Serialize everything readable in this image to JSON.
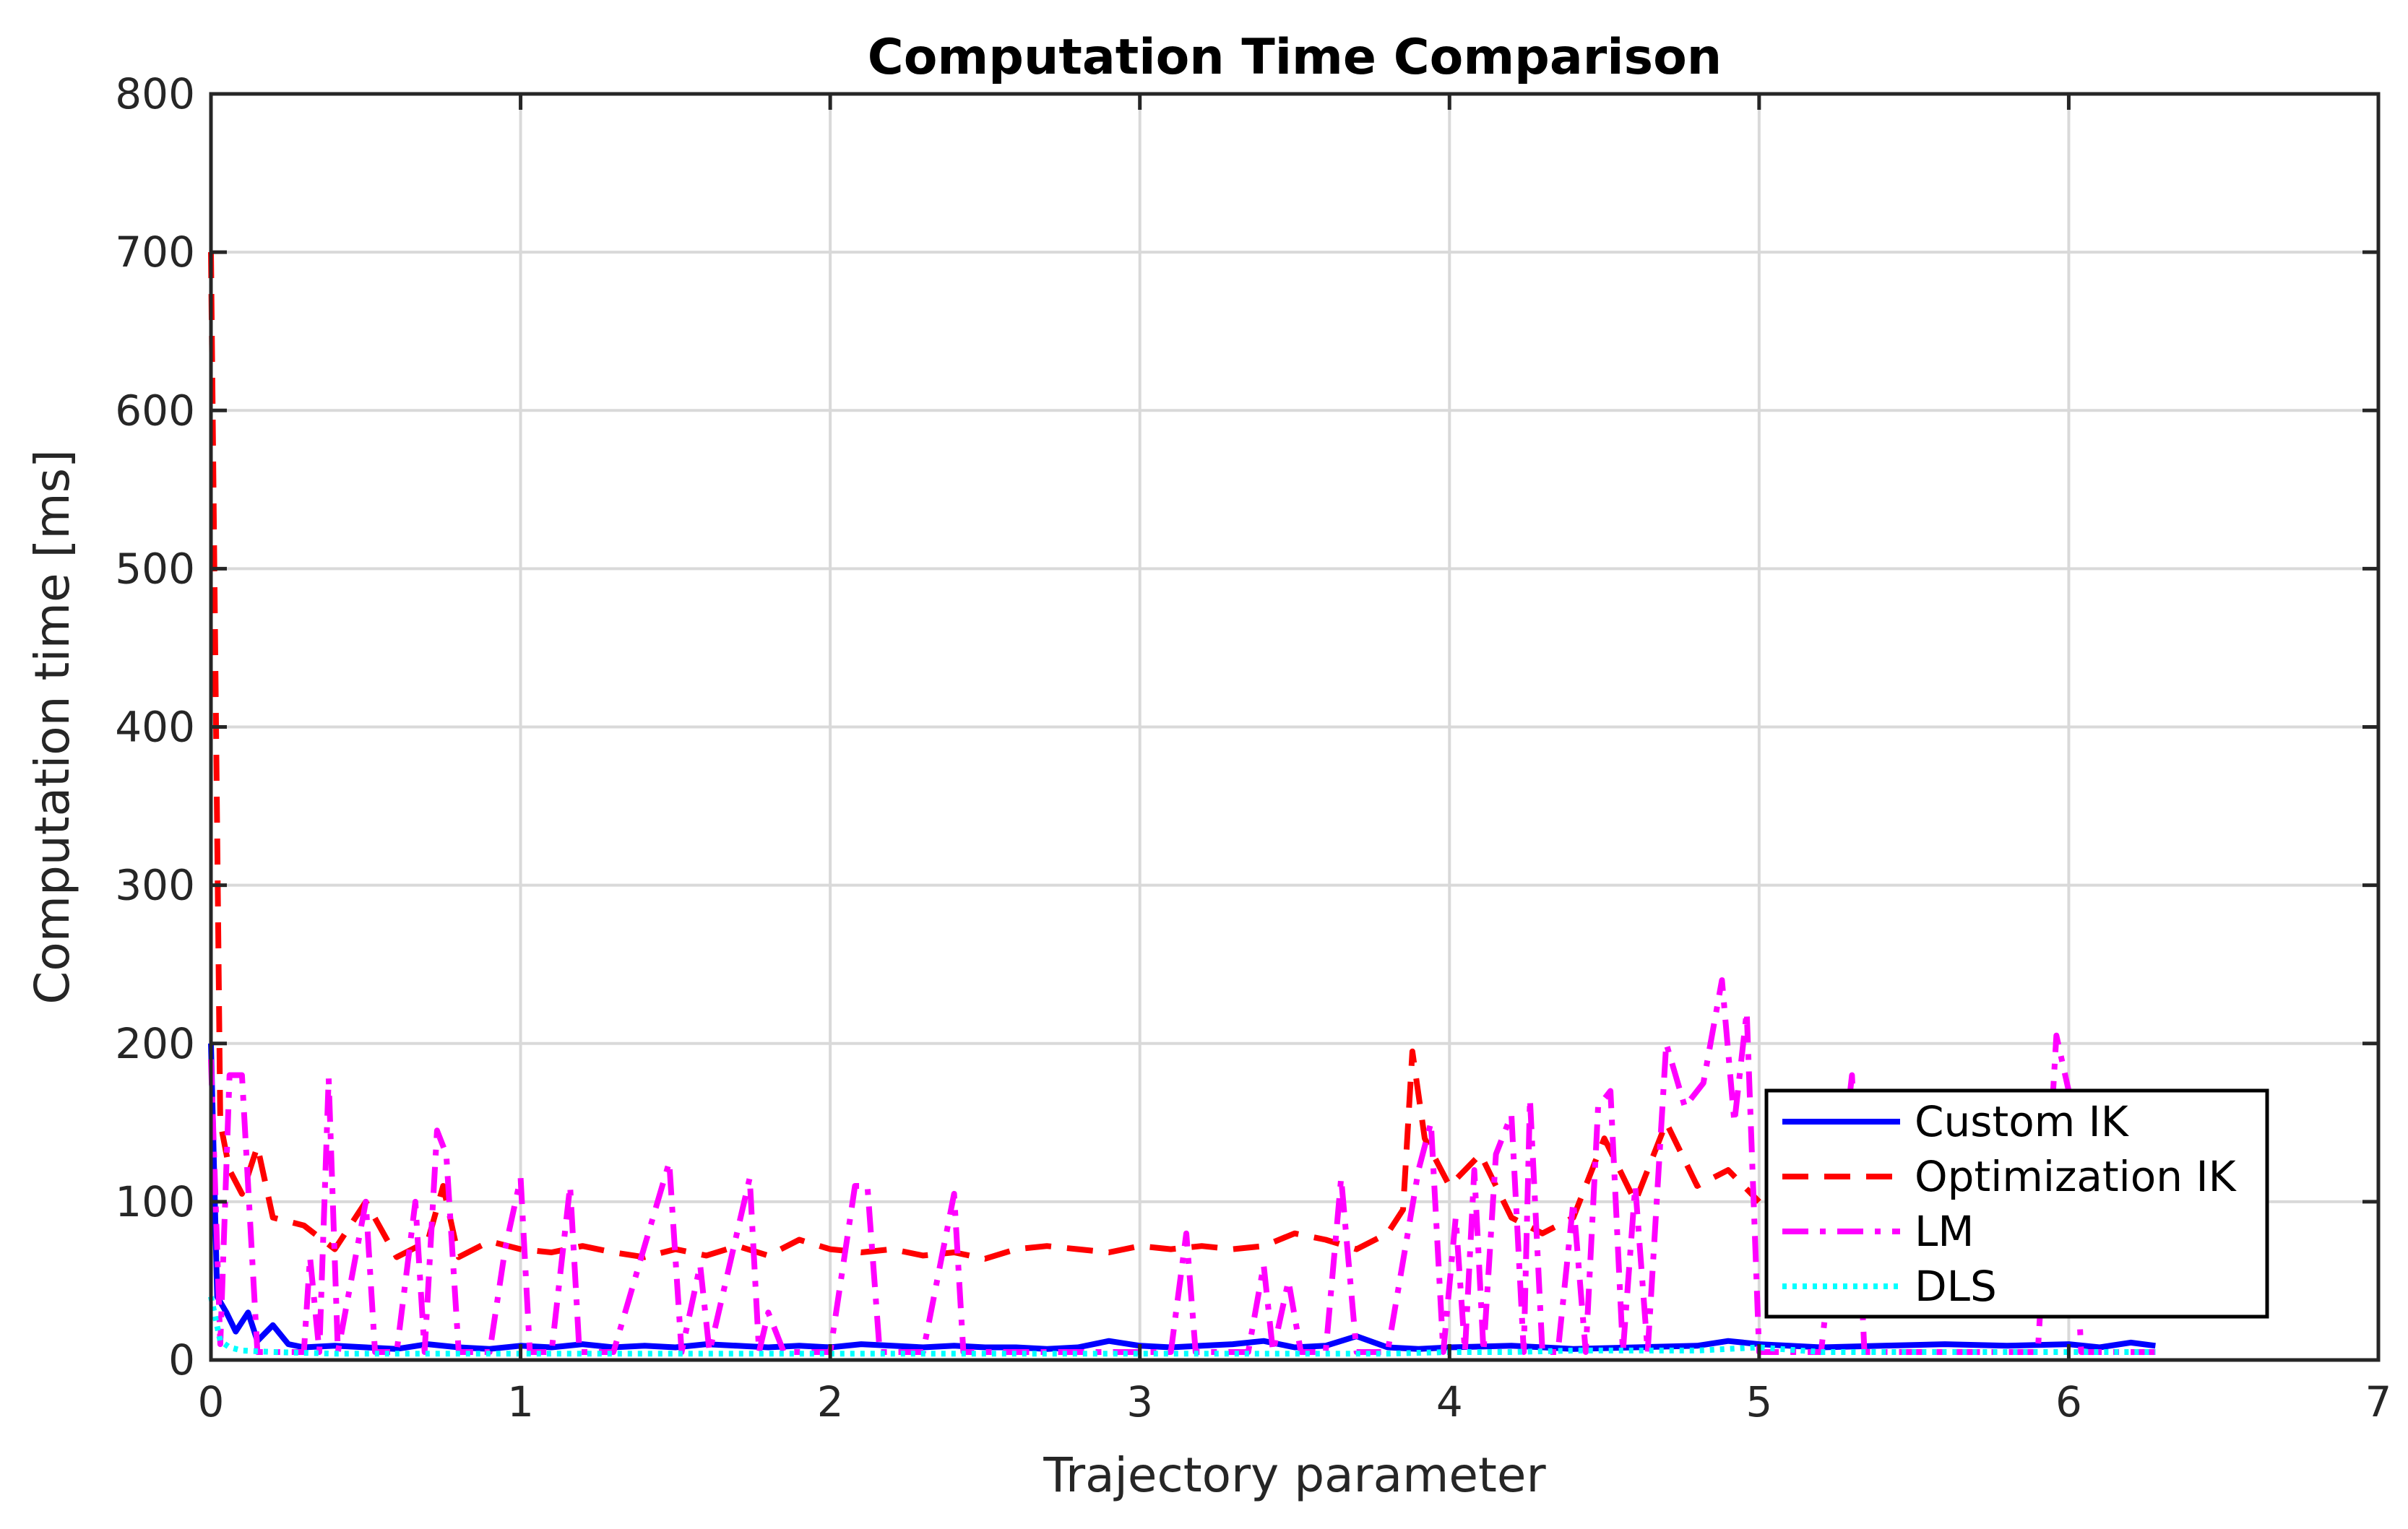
{
  "chart_data": {
    "type": "line",
    "title": "Computation Time Comparison",
    "xlabel": "Trajectory parameter",
    "ylabel": "Computation time [ms]",
    "xlim": [
      0,
      7
    ],
    "ylim": [
      0,
      800
    ],
    "xticks": [
      0,
      1,
      2,
      3,
      4,
      5,
      6,
      7
    ],
    "yticks": [
      0,
      100,
      200,
      300,
      400,
      500,
      600,
      700,
      800
    ],
    "grid": true,
    "legend_position": "bottom-right",
    "series": [
      {
        "name": "Custom IK",
        "color": "#0000ff",
        "line_style": "solid",
        "points": [
          [
            0.0,
            200
          ],
          [
            0.02,
            40
          ],
          [
            0.05,
            30
          ],
          [
            0.08,
            18
          ],
          [
            0.12,
            30
          ],
          [
            0.15,
            12
          ],
          [
            0.2,
            22
          ],
          [
            0.25,
            10
          ],
          [
            0.3,
            8
          ],
          [
            0.4,
            9
          ],
          [
            0.5,
            8
          ],
          [
            0.6,
            7
          ],
          [
            0.7,
            10
          ],
          [
            0.8,
            8
          ],
          [
            0.9,
            7
          ],
          [
            1.0,
            9
          ],
          [
            1.1,
            8
          ],
          [
            1.2,
            10
          ],
          [
            1.3,
            8
          ],
          [
            1.4,
            9
          ],
          [
            1.5,
            8
          ],
          [
            1.6,
            10
          ],
          [
            1.7,
            9
          ],
          [
            1.8,
            8
          ],
          [
            1.9,
            9
          ],
          [
            2.0,
            8
          ],
          [
            2.1,
            10
          ],
          [
            2.2,
            9
          ],
          [
            2.3,
            8
          ],
          [
            2.4,
            9
          ],
          [
            2.5,
            8
          ],
          [
            2.6,
            8
          ],
          [
            2.7,
            7
          ],
          [
            2.8,
            8
          ],
          [
            2.9,
            12
          ],
          [
            3.0,
            9
          ],
          [
            3.1,
            8
          ],
          [
            3.2,
            9
          ],
          [
            3.3,
            10
          ],
          [
            3.4,
            12
          ],
          [
            3.5,
            8
          ],
          [
            3.6,
            9
          ],
          [
            3.7,
            15
          ],
          [
            3.8,
            8
          ],
          [
            3.9,
            7
          ],
          [
            4.0,
            8
          ],
          [
            4.2,
            9
          ],
          [
            4.4,
            7
          ],
          [
            4.6,
            8
          ],
          [
            4.8,
            9
          ],
          [
            4.9,
            12
          ],
          [
            5.0,
            10
          ],
          [
            5.2,
            8
          ],
          [
            5.4,
            9
          ],
          [
            5.6,
            10
          ],
          [
            5.8,
            9
          ],
          [
            6.0,
            10
          ],
          [
            6.1,
            8
          ],
          [
            6.2,
            11
          ],
          [
            6.28,
            9
          ]
        ]
      },
      {
        "name": "Optimization IK",
        "color": "#ff0000",
        "line_style": "dashed",
        "points": [
          [
            0.0,
            700
          ],
          [
            0.03,
            150
          ],
          [
            0.06,
            120
          ],
          [
            0.1,
            105
          ],
          [
            0.15,
            135
          ],
          [
            0.2,
            90
          ],
          [
            0.3,
            85
          ],
          [
            0.4,
            70
          ],
          [
            0.5,
            100
          ],
          [
            0.6,
            65
          ],
          [
            0.7,
            75
          ],
          [
            0.75,
            110
          ],
          [
            0.8,
            65
          ],
          [
            0.9,
            75
          ],
          [
            1.0,
            70
          ],
          [
            1.1,
            68
          ],
          [
            1.2,
            72
          ],
          [
            1.3,
            68
          ],
          [
            1.4,
            65
          ],
          [
            1.5,
            70
          ],
          [
            1.6,
            66
          ],
          [
            1.7,
            72
          ],
          [
            1.8,
            66
          ],
          [
            1.9,
            76
          ],
          [
            2.0,
            70
          ],
          [
            2.1,
            68
          ],
          [
            2.2,
            70
          ],
          [
            2.3,
            66
          ],
          [
            2.4,
            68
          ],
          [
            2.5,
            64
          ],
          [
            2.6,
            70
          ],
          [
            2.7,
            72
          ],
          [
            2.8,
            70
          ],
          [
            2.9,
            68
          ],
          [
            3.0,
            72
          ],
          [
            3.1,
            70
          ],
          [
            3.2,
            72
          ],
          [
            3.3,
            70
          ],
          [
            3.4,
            72
          ],
          [
            3.5,
            80
          ],
          [
            3.6,
            76
          ],
          [
            3.7,
            70
          ],
          [
            3.8,
            80
          ],
          [
            3.85,
            95
          ],
          [
            3.88,
            195
          ],
          [
            3.92,
            140
          ],
          [
            4.0,
            110
          ],
          [
            4.1,
            130
          ],
          [
            4.2,
            90
          ],
          [
            4.3,
            80
          ],
          [
            4.4,
            90
          ],
          [
            4.5,
            140
          ],
          [
            4.6,
            100
          ],
          [
            4.7,
            150
          ],
          [
            4.8,
            110
          ],
          [
            4.9,
            120
          ],
          [
            5.0,
            100
          ]
        ]
      },
      {
        "name": "LM",
        "color": "#ff00ff",
        "line_style": "dash-dot",
        "points": [
          [
            0.0,
            190
          ],
          [
            0.03,
            10
          ],
          [
            0.06,
            180
          ],
          [
            0.1,
            180
          ],
          [
            0.15,
            5
          ],
          [
            0.2,
            5
          ],
          [
            0.3,
            5
          ],
          [
            0.32,
            65
          ],
          [
            0.35,
            5
          ],
          [
            0.38,
            178
          ],
          [
            0.41,
            5
          ],
          [
            0.5,
            100
          ],
          [
            0.53,
            5
          ],
          [
            0.6,
            5
          ],
          [
            0.66,
            100
          ],
          [
            0.69,
            5
          ],
          [
            0.73,
            145
          ],
          [
            0.76,
            130
          ],
          [
            0.8,
            5
          ],
          [
            0.9,
            5
          ],
          [
            0.95,
            70
          ],
          [
            1.0,
            115
          ],
          [
            1.03,
            5
          ],
          [
            1.1,
            5
          ],
          [
            1.16,
            110
          ],
          [
            1.19,
            5
          ],
          [
            1.3,
            5
          ],
          [
            1.48,
            125
          ],
          [
            1.52,
            5
          ],
          [
            1.58,
            60
          ],
          [
            1.61,
            5
          ],
          [
            1.74,
            115
          ],
          [
            1.77,
            5
          ],
          [
            1.8,
            30
          ],
          [
            1.85,
            5
          ],
          [
            2.0,
            5
          ],
          [
            2.08,
            110
          ],
          [
            2.12,
            110
          ],
          [
            2.16,
            5
          ],
          [
            2.3,
            5
          ],
          [
            2.4,
            105
          ],
          [
            2.43,
            5
          ],
          [
            2.6,
            5
          ],
          [
            2.8,
            5
          ],
          [
            3.0,
            5
          ],
          [
            3.1,
            5
          ],
          [
            3.15,
            80
          ],
          [
            3.18,
            5
          ],
          [
            3.35,
            5
          ],
          [
            3.4,
            60
          ],
          [
            3.43,
            5
          ],
          [
            3.48,
            50
          ],
          [
            3.52,
            5
          ],
          [
            3.6,
            5
          ],
          [
            3.65,
            115
          ],
          [
            3.7,
            5
          ],
          [
            3.8,
            5
          ],
          [
            3.9,
            120
          ],
          [
            3.94,
            150
          ],
          [
            3.98,
            5
          ],
          [
            4.02,
            90
          ],
          [
            4.05,
            5
          ],
          [
            4.08,
            120
          ],
          [
            4.11,
            5
          ],
          [
            4.15,
            130
          ],
          [
            4.2,
            155
          ],
          [
            4.24,
            5
          ],
          [
            4.26,
            165
          ],
          [
            4.3,
            5
          ],
          [
            4.35,
            5
          ],
          [
            4.4,
            100
          ],
          [
            4.44,
            5
          ],
          [
            4.48,
            160
          ],
          [
            4.52,
            170
          ],
          [
            4.56,
            5
          ],
          [
            4.6,
            110
          ],
          [
            4.64,
            5
          ],
          [
            4.7,
            200
          ],
          [
            4.76,
            160
          ],
          [
            4.82,
            175
          ],
          [
            4.88,
            240
          ],
          [
            4.92,
            150
          ],
          [
            4.96,
            220
          ],
          [
            5.0,
            5
          ],
          [
            5.1,
            5
          ],
          [
            5.2,
            5
          ],
          [
            5.3,
            180
          ],
          [
            5.34,
            5
          ],
          [
            5.5,
            5
          ],
          [
            5.7,
            5
          ],
          [
            5.9,
            5
          ],
          [
            5.96,
            205
          ],
          [
            6.0,
            170
          ],
          [
            6.04,
            5
          ],
          [
            6.1,
            5
          ],
          [
            6.28,
            5
          ]
        ]
      },
      {
        "name": "DLS",
        "color": "#00ffff",
        "line_style": "dotted",
        "points": [
          [
            0.0,
            40
          ],
          [
            0.03,
            12
          ],
          [
            0.06,
            8
          ],
          [
            0.1,
            6
          ],
          [
            0.2,
            5
          ],
          [
            0.4,
            4
          ],
          [
            0.6,
            4
          ],
          [
            0.8,
            4
          ],
          [
            1.0,
            4
          ],
          [
            1.2,
            4
          ],
          [
            1.4,
            4
          ],
          [
            1.6,
            4
          ],
          [
            1.8,
            4
          ],
          [
            2.0,
            4
          ],
          [
            2.2,
            4
          ],
          [
            2.4,
            4
          ],
          [
            2.6,
            4
          ],
          [
            2.8,
            4
          ],
          [
            3.0,
            4
          ],
          [
            3.2,
            4
          ],
          [
            3.4,
            4
          ],
          [
            3.6,
            4
          ],
          [
            3.8,
            4
          ],
          [
            4.0,
            5
          ],
          [
            4.2,
            5
          ],
          [
            4.4,
            6
          ],
          [
            4.6,
            6
          ],
          [
            4.8,
            6
          ],
          [
            5.0,
            8
          ],
          [
            5.2,
            5
          ],
          [
            5.4,
            5
          ],
          [
            5.6,
            5
          ],
          [
            5.8,
            5
          ],
          [
            6.0,
            5
          ],
          [
            6.2,
            5
          ],
          [
            6.28,
            5
          ]
        ]
      }
    ]
  }
}
